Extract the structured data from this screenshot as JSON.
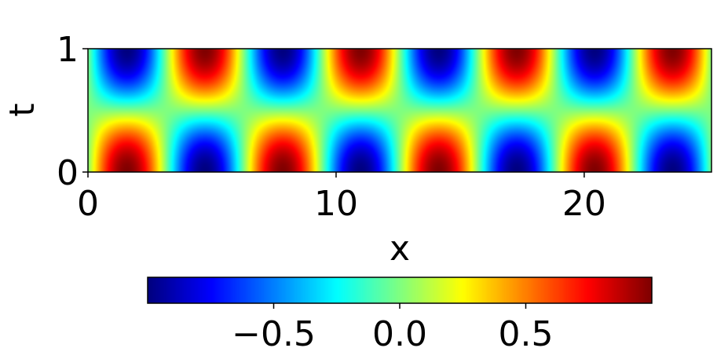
{
  "chart_data": {
    "type": "heatmap",
    "title": "",
    "xlabel": "x",
    "ylabel": "t",
    "xlim": [
      0,
      25.13
    ],
    "ylim": [
      0,
      1
    ],
    "x_ticks": [
      0,
      10,
      20
    ],
    "x_tick_labels": [
      "0",
      "10",
      "20"
    ],
    "y_ticks": [
      0,
      1
    ],
    "y_tick_labels": [
      "0",
      "1"
    ],
    "field": {
      "description_formula": "u(x,t) = sin(x) * cos(pi * t)",
      "x_wavenumber": 1,
      "t_frequency_pi": 1
    },
    "colormap": "jet",
    "colorbar": {
      "orientation": "horizontal",
      "placement": "bottom",
      "vmin": -1,
      "vmax": 1,
      "ticks": [
        -0.5,
        0.0,
        0.5
      ],
      "tick_labels": [
        "−0.5",
        "0.0",
        "0.5"
      ]
    },
    "grid": false
  }
}
